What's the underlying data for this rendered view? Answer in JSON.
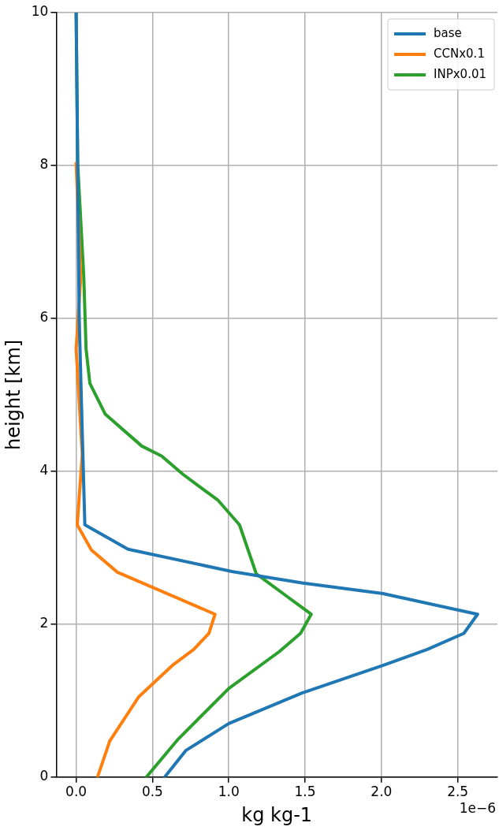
{
  "chart_data": {
    "type": "line",
    "xlabel": "kg kg-1",
    "ylabel": "height [km]",
    "annotations": [
      "1e−6"
    ],
    "xlim": [
      -0.13,
      2.76
    ],
    "ylim": [
      0,
      10
    ],
    "xticks": [
      {
        "value": 0,
        "label": "0.0"
      },
      0.5,
      {
        "value": 1,
        "label": "1.0"
      },
      1.5,
      {
        "value": 2,
        "label": "2.0"
      },
      2.5
    ],
    "yticks": [
      0,
      2,
      4,
      6,
      8,
      10
    ],
    "grid": true,
    "legend": "top right",
    "line_style": "solid",
    "marker": "none",
    "series": [
      {
        "name": "base",
        "color": "#1f77b4",
        "x": [
          0.58,
          0.72,
          1.0,
          1.48,
          2.01,
          2.3,
          2.54,
          2.63,
          2.01,
          1.48,
          1.02,
          0.34,
          0.057,
          0.04,
          0.02,
          0.01,
          0
        ],
        "values": [
          0,
          0.35,
          0.7,
          1.1,
          1.46,
          1.67,
          1.88,
          2.13,
          2.4,
          2.54,
          2.69,
          2.98,
          3.3,
          4.5,
          6,
          8,
          10
        ]
      },
      {
        "name": "CCNx0.1",
        "color": "#ff7f0e",
        "x": [
          0.14,
          0.22,
          0.41,
          0.63,
          0.77,
          0.87,
          0.91,
          0.27,
          0.1,
          0.007,
          0.04,
          0,
          0.03,
          0,
          null
        ],
        "values": [
          0,
          0.47,
          1.05,
          1.46,
          1.67,
          1.88,
          2.13,
          2.68,
          2.97,
          3.3,
          4.22,
          5.6,
          6.54,
          8.03,
          null
        ]
      },
      {
        "name": "INPx0.01",
        "color": "#2ca02c",
        "x": [
          0.46,
          0.67,
          1.0,
          1.33,
          1.47,
          1.54,
          1.37,
          1.18,
          1.07,
          0.93,
          0.7,
          0.56,
          0.43,
          0.19,
          0.09,
          0.065,
          0.05,
          0.01,
          0
        ],
        "values": [
          0,
          0.5,
          1.16,
          1.64,
          1.88,
          2.13,
          2.38,
          2.66,
          3.3,
          3.62,
          3.96,
          4.2,
          4.33,
          4.75,
          5.15,
          5.6,
          6.54,
          8.03,
          10
        ]
      }
    ]
  }
}
